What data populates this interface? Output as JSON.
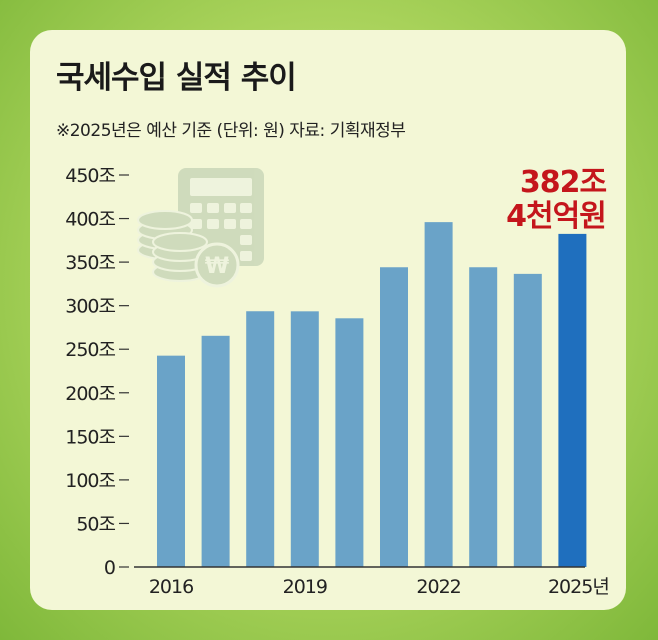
{
  "title": "국세수입 실적 추이",
  "subtitle": "※2025년은 예산 기준 (단위: 원) 자료: 기획재정부",
  "annotation": [
    "382조",
    "4천억원"
  ],
  "colors": {
    "bar": "#6aa3c8",
    "bar_highlight": "#1f6fbe",
    "annotation": "#c4161c",
    "axis": "#333333"
  },
  "icon": "calculator-and-coins-icon",
  "chart_data": {
    "type": "bar",
    "title": "국세수입 실적 추이",
    "x": [
      "2016",
      "2017",
      "2018",
      "2019",
      "2020",
      "2021",
      "2022",
      "2023",
      "2024",
      "2025"
    ],
    "x_tick_labels": [
      "2016",
      "",
      "",
      "2019",
      "",
      "",
      "2022",
      "",
      "",
      "2025년"
    ],
    "values": [
      242.6,
      265.4,
      293.6,
      293.5,
      285.5,
      344.1,
      395.9,
      344.1,
      336.5,
      382.4
    ],
    "highlight_index": 9,
    "ylim": [
      0,
      450
    ],
    "y_ticks": [
      0,
      50,
      100,
      150,
      200,
      250,
      300,
      350,
      400,
      450
    ],
    "y_tick_labels": [
      "0",
      "50조",
      "100조",
      "150조",
      "200조",
      "250조",
      "300조",
      "350조",
      "400조",
      "450조"
    ],
    "xlabel": "",
    "ylabel": "",
    "grid": false,
    "legend": "none"
  }
}
